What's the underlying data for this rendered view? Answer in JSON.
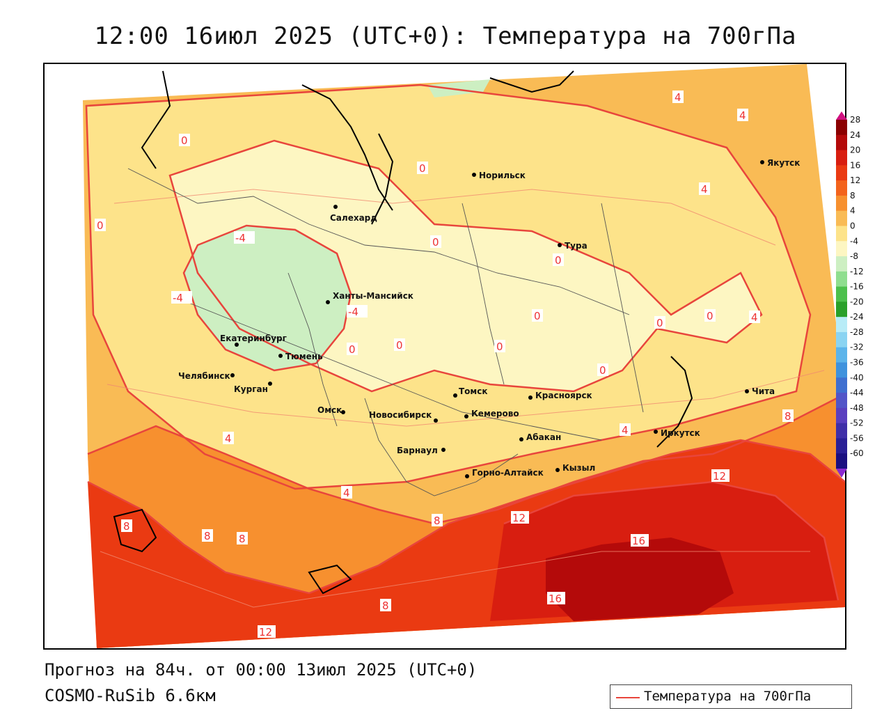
{
  "title": "12:00 16июл 2025 (UTC+0): Температура на 700гПа",
  "footer": {
    "forecast": "Прогноз на 84ч. от 00:00 13июл 2025 (UTC+0)",
    "model": "COSMO-RuSib 6.6км"
  },
  "legend": {
    "label": "Температура на 700гПа",
    "line_color": "#e8453c"
  },
  "colorbar": {
    "ticks": [
      "28",
      "24",
      "20",
      "16",
      "12",
      "8",
      "4",
      "0",
      "-4",
      "-8",
      "-12",
      "-16",
      "-20",
      "-24",
      "-28",
      "-32",
      "-36",
      "-40",
      "-44",
      "-48",
      "-52",
      "-56",
      "-60"
    ],
    "colors": [
      "#8b0000",
      "#b40a0a",
      "#d81e10",
      "#ea3a12",
      "#f3631c",
      "#f7902f",
      "#f9bb55",
      "#fde38a",
      "#fdf6c2",
      "#cdefc2",
      "#8fde8f",
      "#4cc04c",
      "#2aa02a",
      "#b8ecf7",
      "#8ad4f2",
      "#5cb4ea",
      "#3f92dd",
      "#3f6fd0",
      "#5255c8",
      "#5a3fbf",
      "#3f2fa8",
      "#2a1f96",
      "#1a0f80"
    ],
    "top_arrow_color": "#d01080",
    "bottom_arrow_color": "#8a2ad0"
  },
  "cities": [
    {
      "name": "Норильск"
    },
    {
      "name": "Якутск"
    },
    {
      "name": "Салехард"
    },
    {
      "name": "Тура"
    },
    {
      "name": "Ханты-Мансийск"
    },
    {
      "name": "Екатеринбург"
    },
    {
      "name": "Тюмень"
    },
    {
      "name": "Челябинск"
    },
    {
      "name": "Курган"
    },
    {
      "name": "Омск"
    },
    {
      "name": "Новосибирск"
    },
    {
      "name": "Томск"
    },
    {
      "name": "Красноярск"
    },
    {
      "name": "Кемерово"
    },
    {
      "name": "Абакан"
    },
    {
      "name": "Барнаул"
    },
    {
      "name": "Горно-Алтайск"
    },
    {
      "name": "Кызыл"
    },
    {
      "name": "Иркутск"
    },
    {
      "name": "Чита"
    }
  ],
  "contour_labels": [
    "4",
    "4",
    "0",
    "0",
    "4",
    "-4",
    "-4",
    "-4",
    "0",
    "0",
    "0",
    "0",
    "0",
    "0",
    "0",
    "0",
    "0",
    "4",
    "0",
    "4",
    "4",
    "8",
    "8",
    "8",
    "8",
    "12",
    "12",
    "16",
    "16",
    "8",
    "12",
    "8",
    "4"
  ]
}
